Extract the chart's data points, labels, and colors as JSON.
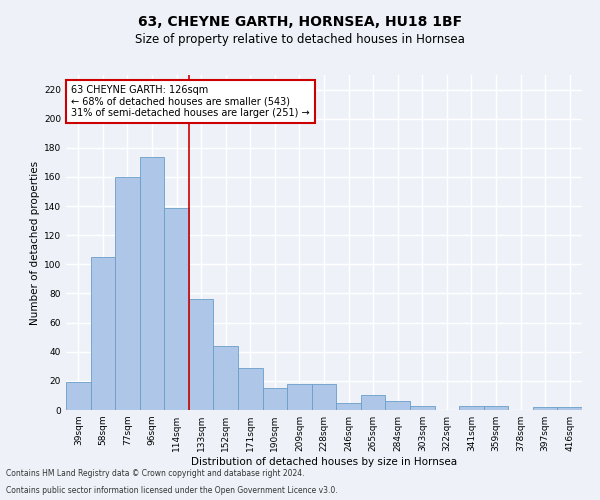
{
  "title": "63, CHEYNE GARTH, HORNSEA, HU18 1BF",
  "subtitle": "Size of property relative to detached houses in Hornsea",
  "xlabel": "Distribution of detached houses by size in Hornsea",
  "ylabel": "Number of detached properties",
  "categories": [
    "39sqm",
    "58sqm",
    "77sqm",
    "96sqm",
    "114sqm",
    "133sqm",
    "152sqm",
    "171sqm",
    "190sqm",
    "209sqm",
    "228sqm",
    "246sqm",
    "265sqm",
    "284sqm",
    "303sqm",
    "322sqm",
    "341sqm",
    "359sqm",
    "378sqm",
    "397sqm",
    "416sqm"
  ],
  "values": [
    19,
    105,
    160,
    174,
    139,
    76,
    44,
    29,
    15,
    18,
    18,
    5,
    10,
    6,
    3,
    0,
    3,
    3,
    0,
    2,
    2
  ],
  "bar_color": "#aec6e8",
  "bar_edge_color": "#6a9ec8",
  "vline_color": "#cc0000",
  "vline_x": 4.5,
  "annotation_line1": "63 CHEYNE GARTH: 126sqm",
  "annotation_line2": "← 68% of detached houses are smaller (543)",
  "annotation_line3": "31% of semi-detached houses are larger (251) →",
  "annotation_box_bg": "#ffffff",
  "annotation_box_edge": "#cc0000",
  "ylim": [
    0,
    230
  ],
  "yticks": [
    0,
    20,
    40,
    60,
    80,
    100,
    120,
    140,
    160,
    180,
    200,
    220
  ],
  "bg_color": "#eef2f8",
  "grid_color": "#ffffff",
  "title_fontsize": 10,
  "subtitle_fontsize": 8.5,
  "axis_label_fontsize": 7.5,
  "tick_fontsize": 6.5,
  "annotation_fontsize": 7,
  "footnote1": "Contains HM Land Registry data © Crown copyright and database right 2024.",
  "footnote2": "Contains public sector information licensed under the Open Government Licence v3.0.",
  "footnote_fontsize": 5.5
}
